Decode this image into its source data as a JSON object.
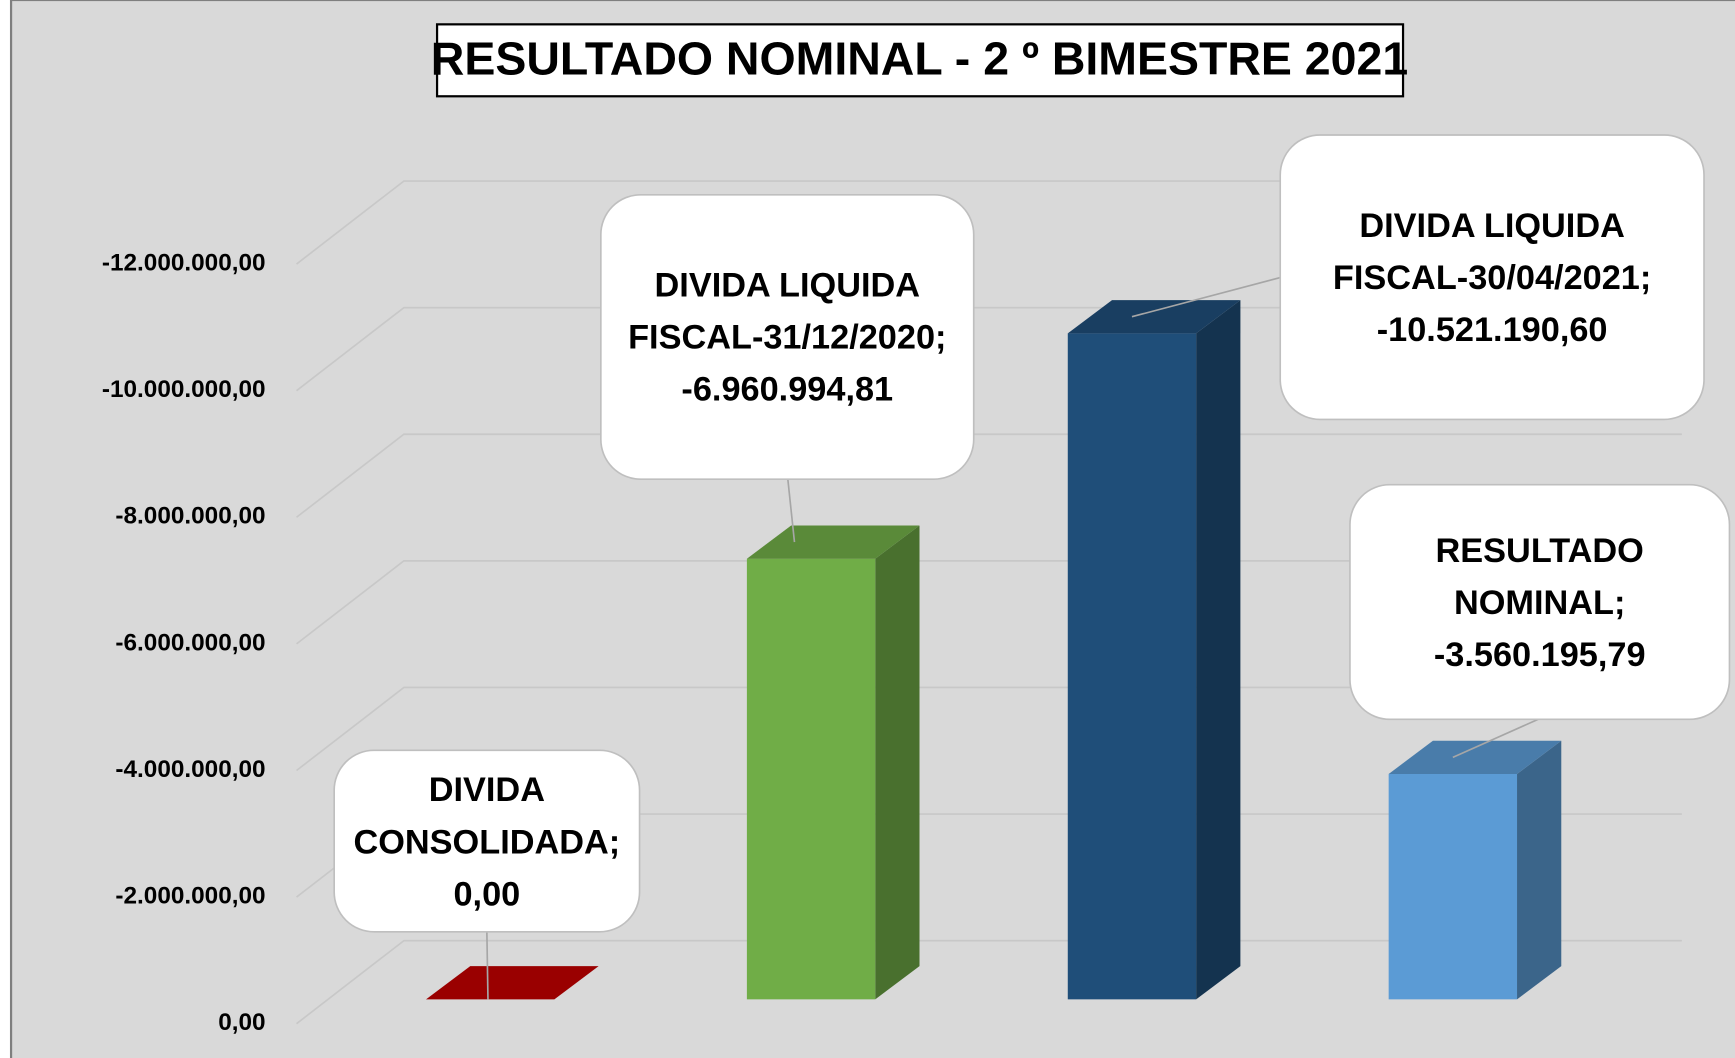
{
  "chart_data": {
    "type": "bar3d",
    "title": "RESULTADO NOMINAL - 2 º BIMESTRE 2021",
    "values": [
      0,
      -6960994.81,
      -10521190.6,
      -3560195.79
    ],
    "value_labels": [
      "DIVIDA CONSOLIDADA; 0,00",
      "DIVIDA LIQUIDA FISCAL-31/12/2020; -6.960.994,81",
      "DIVIDA LIQUIDA FISCAL-30/04/2021; -10.521.190,60",
      "RESULTADO NOMINAL; -3.560.195,79"
    ],
    "colors": [
      "#c00000",
      "#70ad47",
      "#1f4e79",
      "#5b9bd5"
    ],
    "ylim": [
      0,
      -12000000
    ],
    "yticks": [
      {
        "value": 0,
        "label": "0,00"
      },
      {
        "value": -2000000,
        "label": "-2.000.000,00"
      },
      {
        "value": -4000000,
        "label": "-4.000.000,00"
      },
      {
        "value": -6000000,
        "label": "-6.000.000,00"
      },
      {
        "value": -8000000,
        "label": "-8.000.000,00"
      },
      {
        "value": -10000000,
        "label": "-10.000.000,00"
      },
      {
        "value": -12000000,
        "label": "-12.000.000,00"
      }
    ],
    "grid": true
  }
}
